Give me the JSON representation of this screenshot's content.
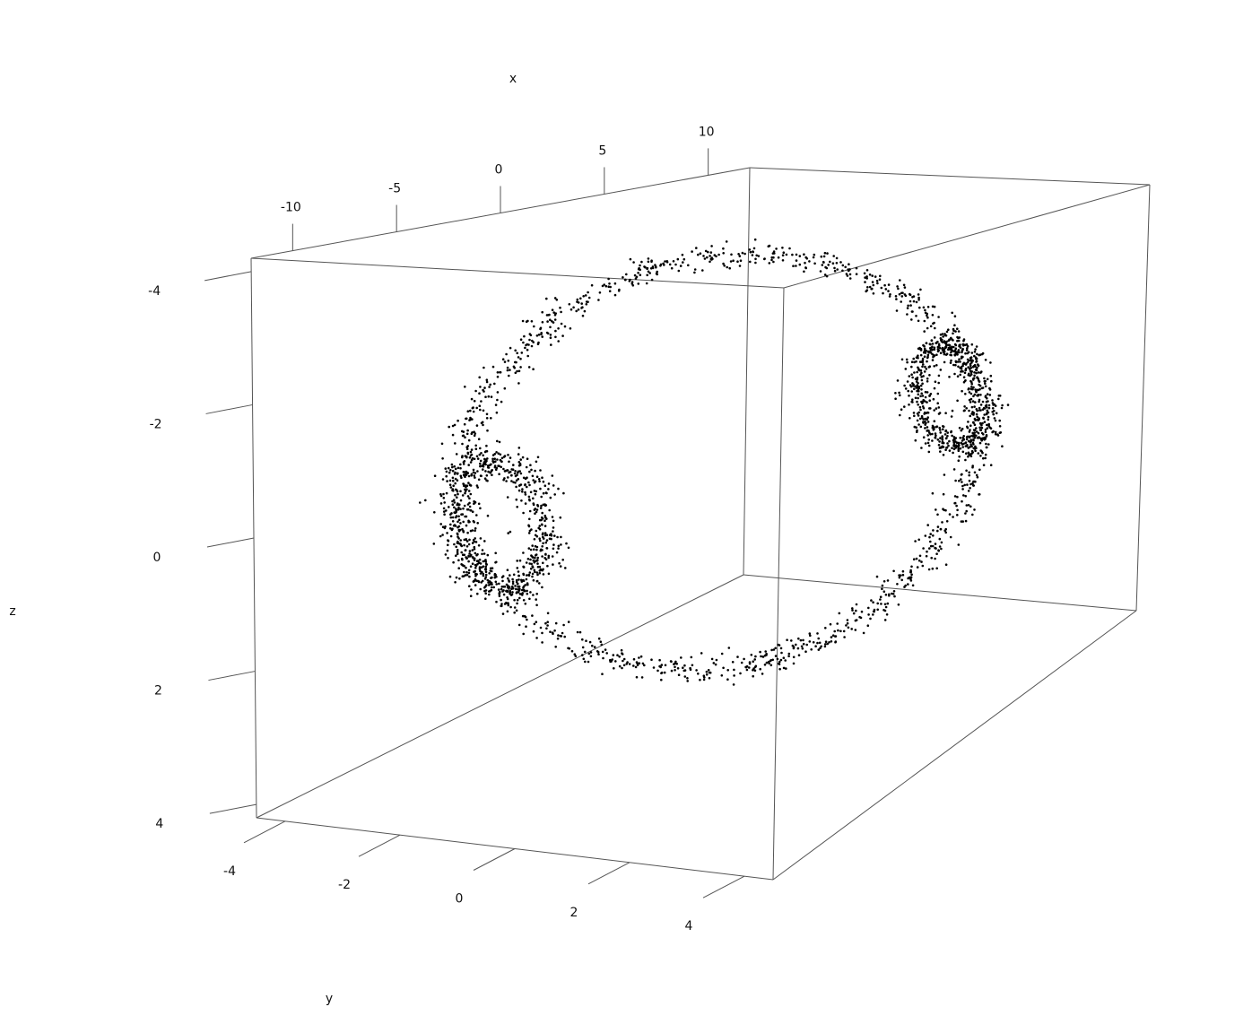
{
  "chart_data": {
    "type": "scatter",
    "title": "",
    "xlabel": "x",
    "ylabel": "y",
    "zlabel": "z",
    "xlim": [
      -12,
      12
    ],
    "ylim": [
      -4.5,
      4.5
    ],
    "zlim": [
      -4.2,
      4.2
    ],
    "x_ticks": [
      -10,
      -5,
      0,
      5,
      10
    ],
    "x_tick_labels": [
      "-10",
      "-5",
      "0",
      "5",
      "10"
    ],
    "y_ticks": [
      -4,
      -2,
      0,
      2,
      4
    ],
    "y_tick_labels": [
      "-4",
      "-2",
      "0",
      "2",
      "4"
    ],
    "z_ticks": [
      -4,
      -2,
      0,
      2,
      4
    ],
    "z_tick_labels": [
      "-4",
      "-2",
      "0",
      "2",
      "4"
    ],
    "grid": false,
    "legend": "none",
    "point_color": "#000000",
    "point_count": 2600,
    "description_of_shape": ""
  }
}
